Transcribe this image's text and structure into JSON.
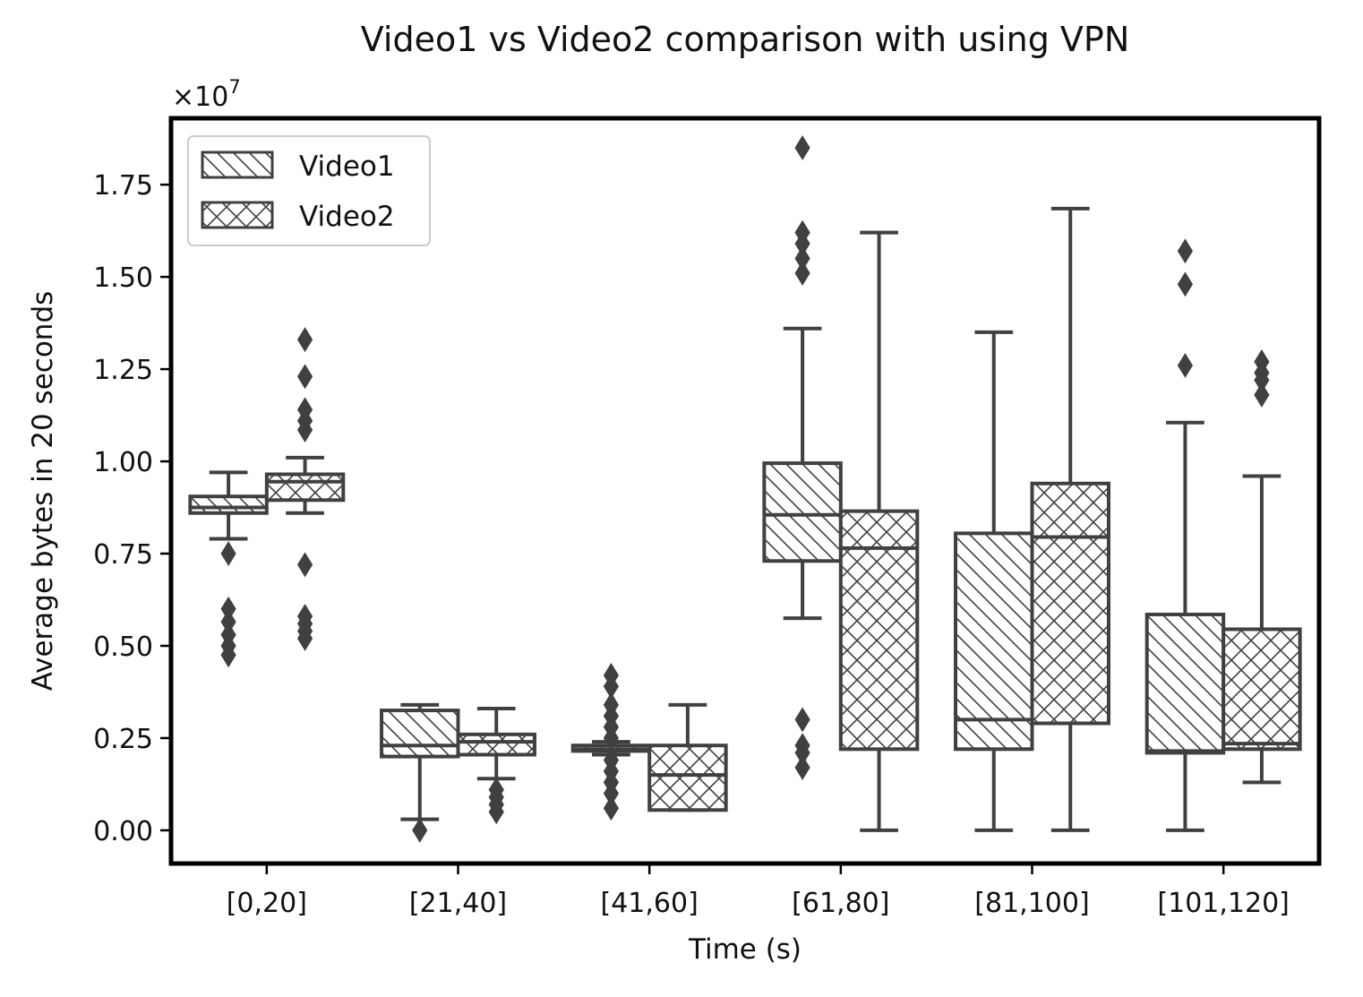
{
  "chart_data": {
    "type": "box",
    "title": "Video1 vs Video2 comparison with using VPN",
    "xlabel": "Time (s)",
    "ylabel": "Average bytes in 20 seconds",
    "y_multiplier_label": "×10",
    "y_multiplier_exp": "7",
    "y_scale": 10000000,
    "ylim": [
      -0.09,
      1.93
    ],
    "yticks": [
      0.0,
      0.25,
      0.5,
      0.75,
      1.0,
      1.25,
      1.5,
      1.75
    ],
    "ytick_labels": [
      "0.00",
      "0.25",
      "0.50",
      "0.75",
      "1.00",
      "1.25",
      "1.50",
      "1.75"
    ],
    "categories": [
      "[0,20]",
      "[21,40]",
      "[41,60]",
      "[61,80]",
      "[81,100]",
      "[101,120]"
    ],
    "legend_position": "upper-left",
    "grid": false,
    "series": [
      {
        "name": "Video1",
        "hatch": "diagonal",
        "boxes": [
          {
            "whislo": 0.79,
            "q1": 0.86,
            "med": 0.875,
            "q3": 0.905,
            "whishi": 0.97,
            "fliers": [
              0.75,
              0.6,
              0.565,
              0.53,
              0.5,
              0.475
            ]
          },
          {
            "whislo": 0.03,
            "q1": 0.2,
            "med": 0.23,
            "q3": 0.325,
            "whishi": 0.34,
            "fliers": [
              0.0
            ]
          },
          {
            "whislo": 0.205,
            "q1": 0.215,
            "med": 0.22,
            "q3": 0.23,
            "whishi": 0.24,
            "fliers": [
              0.42,
              0.39,
              0.34,
              0.31,
              0.28,
              0.25,
              0.19,
              0.16,
              0.13,
              0.1,
              0.06
            ]
          },
          {
            "whislo": 0.575,
            "q1": 0.73,
            "med": 0.855,
            "q3": 0.995,
            "whishi": 1.36,
            "fliers": [
              1.85,
              1.62,
              1.59,
              1.55,
              1.51,
              0.3,
              0.23,
              0.21,
              0.17
            ]
          },
          {
            "whislo": 0.0,
            "q1": 0.22,
            "med": 0.3,
            "q3": 0.805,
            "whishi": 1.35,
            "fliers": []
          },
          {
            "whislo": 0.0,
            "q1": 0.21,
            "med": 0.215,
            "q3": 0.585,
            "whishi": 1.105,
            "fliers": [
              1.57,
              1.48,
              1.26
            ]
          }
        ]
      },
      {
        "name": "Video2",
        "hatch": "cross",
        "boxes": [
          {
            "whislo": 0.86,
            "q1": 0.895,
            "med": 0.945,
            "q3": 0.965,
            "whishi": 1.01,
            "fliers": [
              1.33,
              1.23,
              1.14,
              1.11,
              1.085,
              0.72,
              0.58,
              0.56,
              0.54,
              0.52
            ]
          },
          {
            "whislo": 0.14,
            "q1": 0.205,
            "med": 0.24,
            "q3": 0.26,
            "whishi": 0.33,
            "fliers": [
              0.11,
              0.09,
              0.07,
              0.05
            ]
          },
          {
            "whislo": 0.055,
            "q1": 0.055,
            "med": 0.15,
            "q3": 0.23,
            "whishi": 0.34,
            "fliers": []
          },
          {
            "whislo": 0.0,
            "q1": 0.22,
            "med": 0.765,
            "q3": 0.865,
            "whishi": 1.62,
            "fliers": []
          },
          {
            "whislo": 0.0,
            "q1": 0.29,
            "med": 0.795,
            "q3": 0.94,
            "whishi": 1.685,
            "fliers": []
          },
          {
            "whislo": 0.13,
            "q1": 0.22,
            "med": 0.235,
            "q3": 0.545,
            "whishi": 0.96,
            "fliers": [
              1.27,
              1.24,
              1.22,
              1.18
            ]
          }
        ]
      }
    ]
  }
}
